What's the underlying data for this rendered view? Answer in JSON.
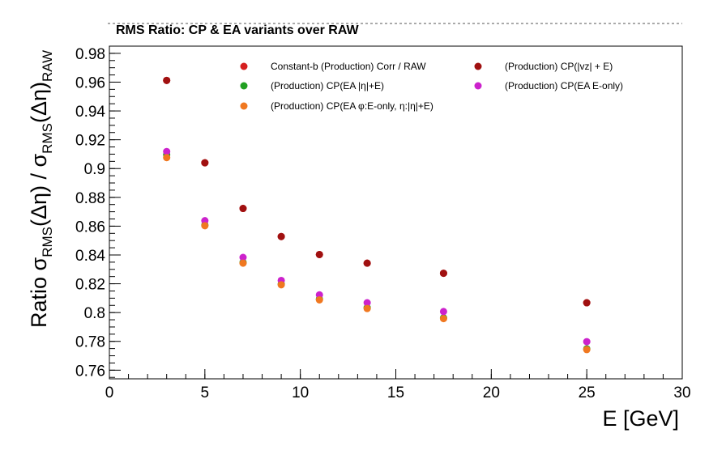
{
  "chart_data": {
    "type": "scatter",
    "title": "RMS Ratio: CP & EA variants over RAW",
    "xlabel": "E  [GeV]",
    "ylabel": {
      "prefix": "Ratio  σ",
      "sub1": "RMS",
      "mid1": "(Δη) / σ",
      "sub2": "RMS",
      "mid2": "(Δη)",
      "sub3": "RAW"
    },
    "xlim": [
      0,
      30
    ],
    "ylim": [
      0.754,
      0.985
    ],
    "x_ticks": [
      0,
      5,
      10,
      15,
      20,
      25,
      30
    ],
    "x_tick_labels": [
      "0",
      "5",
      "10",
      "15",
      "20",
      "25",
      "30"
    ],
    "y_ticks": [
      0.76,
      0.78,
      0.8,
      0.82,
      0.84,
      0.86,
      0.88,
      0.9,
      0.92,
      0.94,
      0.96,
      0.98
    ],
    "y_tick_labels": [
      "0.76",
      "0.78",
      "0.8",
      "0.82",
      "0.84",
      "0.86",
      "0.88",
      "0.9",
      "0.92",
      "0.94",
      "0.96",
      "0.98"
    ],
    "x_minor_step": 1,
    "y_minor_step": 0.005,
    "grid": false,
    "legend_position": "top-right",
    "x": [
      3,
      5,
      7,
      9,
      11,
      13.5,
      17.5,
      25
    ],
    "series": [
      {
        "name": "Constant-b (Production) Corr / RAW",
        "color": "#d62020",
        "values": [
          0.9612,
          0.904,
          0.8723,
          0.8528,
          0.8403,
          0.8343,
          0.8273,
          0.8068
        ]
      },
      {
        "name": "(Production) CP(|vz| + E)",
        "color": "#a01010",
        "values": [
          0.9612,
          0.904,
          0.8723,
          0.8528,
          0.8403,
          0.8343,
          0.8273,
          0.8068
        ]
      },
      {
        "name": "(Production) CP(EA |η|+E)",
        "color": "#22a022",
        "values": [
          0.9097,
          0.8608,
          0.8348,
          0.8198,
          0.8094,
          0.8034,
          0.7963,
          0.7748
        ]
      },
      {
        "name": "(Production) CP(EA E-only)",
        "color": "#cc22cc",
        "values": [
          0.9118,
          0.8638,
          0.8383,
          0.8223,
          0.8123,
          0.8068,
          0.8007,
          0.7798
        ]
      },
      {
        "name": "(Production) CP(EA φ:E-only, η:|η|+E)",
        "color": "#f07820",
        "values": [
          0.9076,
          0.8603,
          0.8343,
          0.8193,
          0.8088,
          0.8028,
          0.7958,
          0.7743
        ]
      }
    ]
  }
}
